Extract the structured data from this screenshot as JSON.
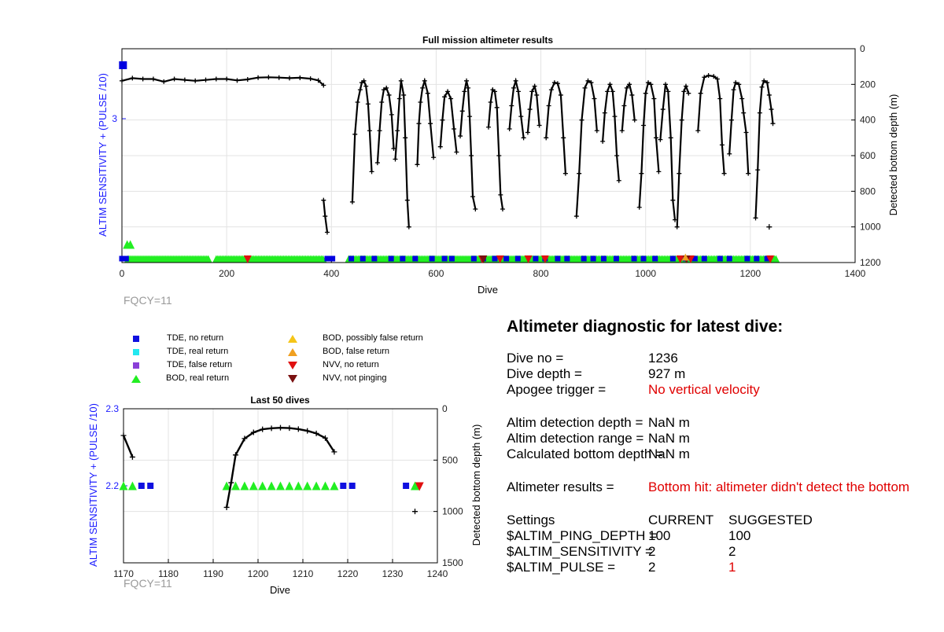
{
  "chart_data": [
    {
      "type": "scatter",
      "title": "Full mission altimeter results",
      "xlabel": "Dive",
      "ylabel_left": "ALTIM SENSITIVITY + (PULSE /10)",
      "ylabel_right": "Detected bottom depth (m)",
      "xlim": [
        0,
        1400
      ],
      "xticks": [
        "0",
        "200",
        "400",
        "600",
        "800",
        "1000",
        "1200",
        "1400"
      ],
      "ylim_right": [
        1200,
        0
      ],
      "yticks_right": [
        "0",
        "200",
        "400",
        "600",
        "800",
        "1000",
        "1200"
      ],
      "yticks_left": [
        "3"
      ],
      "grid": true,
      "colors": {
        "tde_no_return": "#0000e0",
        "bod_real_return": "#22ee22",
        "nvv_no_return": "#e01010",
        "nvv_not_pinging": "#7a1010",
        "bod_false_return": "#f0a020",
        "depth": "#000000"
      },
      "depth_segments": [
        [
          [
            0,
            180
          ],
          [
            20,
            165
          ],
          [
            40,
            170
          ],
          [
            60,
            170
          ],
          [
            80,
            185
          ],
          [
            100,
            170
          ],
          [
            120,
            175
          ],
          [
            140,
            180
          ],
          [
            160,
            175
          ],
          [
            180,
            170
          ],
          [
            200,
            170
          ],
          [
            220,
            178
          ],
          [
            240,
            172
          ],
          [
            260,
            162
          ],
          [
            280,
            160
          ],
          [
            300,
            162
          ],
          [
            320,
            165
          ],
          [
            340,
            163
          ],
          [
            360,
            168
          ],
          [
            375,
            178
          ],
          [
            385,
            205
          ]
        ],
        [
          [
            385,
            850
          ],
          [
            388,
            940
          ],
          [
            392,
            1030
          ]
        ],
        [
          [
            440,
            860
          ],
          [
            445,
            480
          ],
          [
            450,
            300
          ],
          [
            455,
            230
          ],
          [
            458,
            190
          ],
          [
            462,
            180
          ],
          [
            466,
            210
          ],
          [
            470,
            310
          ],
          [
            473,
            460
          ],
          [
            477,
            690
          ]
        ],
        [
          [
            488,
            640
          ],
          [
            492,
            460
          ],
          [
            496,
            300
          ],
          [
            500,
            230
          ],
          [
            505,
            220
          ],
          [
            510,
            260
          ],
          [
            515,
            370
          ],
          [
            519,
            560
          ]
        ],
        [
          [
            522,
            620
          ],
          [
            526,
            460
          ],
          [
            530,
            280
          ],
          [
            533,
            180
          ],
          [
            538,
            260
          ],
          [
            541,
            500
          ],
          [
            545,
            850
          ],
          [
            548,
            1000
          ]
        ],
        [
          [
            564,
            650
          ],
          [
            567,
            420
          ],
          [
            570,
            300
          ],
          [
            574,
            220
          ],
          [
            578,
            180
          ],
          [
            584,
            250
          ],
          [
            589,
            420
          ],
          [
            595,
            610
          ]
        ],
        [
          [
            608,
            550
          ],
          [
            612,
            400
          ],
          [
            616,
            270
          ],
          [
            622,
            240
          ],
          [
            628,
            280
          ],
          [
            634,
            450
          ],
          [
            639,
            580
          ]
        ],
        [
          [
            646,
            490
          ],
          [
            650,
            350
          ],
          [
            654,
            240
          ],
          [
            658,
            180
          ],
          [
            661,
            220
          ],
          [
            664,
            380
          ],
          [
            667,
            600
          ],
          [
            670,
            830
          ],
          [
            675,
            900
          ]
        ],
        [
          [
            700,
            440
          ],
          [
            704,
            300
          ],
          [
            708,
            230
          ],
          [
            712,
            240
          ],
          [
            716,
            330
          ],
          [
            720,
            600
          ],
          [
            723,
            820
          ],
          [
            727,
            900
          ]
        ],
        [
          [
            740,
            450
          ],
          [
            744,
            320
          ],
          [
            748,
            220
          ],
          [
            752,
            180
          ],
          [
            757,
            240
          ],
          [
            762,
            380
          ],
          [
            767,
            500
          ]
        ],
        [
          [
            775,
            470
          ],
          [
            779,
            340
          ],
          [
            783,
            240
          ],
          [
            788,
            210
          ],
          [
            792,
            260
          ],
          [
            797,
            430
          ]
        ],
        [
          [
            810,
            500
          ],
          [
            815,
            320
          ],
          [
            820,
            230
          ],
          [
            826,
            190
          ],
          [
            832,
            195
          ],
          [
            838,
            260
          ],
          [
            843,
            500
          ],
          [
            847,
            700
          ]
        ],
        [
          [
            868,
            940
          ],
          [
            873,
            700
          ],
          [
            878,
            400
          ],
          [
            884,
            220
          ],
          [
            890,
            180
          ],
          [
            896,
            190
          ],
          [
            902,
            280
          ],
          [
            907,
            460
          ]
        ],
        [
          [
            918,
            520
          ],
          [
            922,
            360
          ],
          [
            927,
            240
          ],
          [
            932,
            200
          ],
          [
            937,
            240
          ],
          [
            941,
            380
          ],
          [
            945,
            600
          ],
          [
            949,
            740
          ]
        ],
        [
          [
            955,
            460
          ],
          [
            959,
            320
          ],
          [
            964,
            220
          ],
          [
            969,
            200
          ],
          [
            974,
            260
          ],
          [
            979,
            400
          ]
        ],
        [
          [
            988,
            890
          ],
          [
            992,
            700
          ],
          [
            996,
            430
          ],
          [
            1000,
            250
          ],
          [
            1005,
            190
          ],
          [
            1010,
            200
          ],
          [
            1016,
            280
          ],
          [
            1020,
            500
          ],
          [
            1025,
            690
          ]
        ],
        [
          [
            1028,
            510
          ],
          [
            1033,
            340
          ],
          [
            1038,
            200
          ],
          [
            1043,
            240
          ],
          [
            1048,
            500
          ],
          [
            1052,
            850
          ],
          [
            1056,
            960
          ]
        ],
        [
          [
            1060,
            1000
          ],
          [
            1064,
            700
          ],
          [
            1069,
            400
          ],
          [
            1073,
            240
          ],
          [
            1077,
            210
          ],
          [
            1082,
            250
          ]
        ],
        [
          [
            1100,
            460
          ],
          [
            1105,
            250
          ],
          [
            1112,
            160
          ],
          [
            1120,
            150
          ],
          [
            1130,
            155
          ],
          [
            1137,
            170
          ],
          [
            1142,
            280
          ],
          [
            1146,
            540
          ],
          [
            1150,
            700
          ]
        ],
        [
          [
            1160,
            590
          ],
          [
            1164,
            400
          ],
          [
            1168,
            230
          ],
          [
            1172,
            190
          ],
          [
            1178,
            200
          ],
          [
            1184,
            280
          ],
          [
            1187,
            360
          ],
          [
            1192,
            470
          ],
          [
            1196,
            700
          ]
        ],
        [
          [
            1210,
            950
          ],
          [
            1214,
            680
          ],
          [
            1218,
            360
          ],
          [
            1222,
            215
          ],
          [
            1226,
            180
          ],
          [
            1232,
            190
          ],
          [
            1236,
            260
          ],
          [
            1240,
            340
          ],
          [
            1243,
            420
          ]
        ]
      ],
      "depth_isolated": [
        [
          1236,
          1000
        ]
      ],
      "tde_no_return_dives": [
        0,
        8,
        392,
        402,
        438,
        460,
        482,
        514,
        536,
        560,
        592,
        616,
        630,
        672,
        690,
        712,
        734,
        756,
        790,
        808,
        832,
        850,
        882,
        900,
        920,
        944,
        978,
        996,
        1018,
        1052,
        1076,
        1094,
        1112,
        1142,
        1160,
        1194,
        1212,
        1232
      ],
      "bod_band": [
        [
          12,
          165
        ],
        [
          180,
          385
        ],
        [
          433,
          1250
        ]
      ],
      "bod_low_dives": [
        10,
        16
      ],
      "nvv_no_return_dives": [
        240,
        688,
        722,
        776,
        808,
        1066,
        1086,
        1238
      ],
      "nvv_not_pinging_dives": [
        690,
        1078
      ]
    },
    {
      "type": "scatter",
      "title": "Last 50 dives",
      "xlabel": "Dive",
      "ylabel_left": "ALTIM SENSITIVITY + (PULSE /10)",
      "ylabel_right": "Detected bottom depth (m)",
      "xlim": [
        1170,
        1240
      ],
      "xticks": [
        "1170",
        "1180",
        "1190",
        "1200",
        "1210",
        "1220",
        "1230",
        "1240"
      ],
      "ylim_left": [
        2.1,
        2.3
      ],
      "yticks_left": [
        "2.3",
        "2.2"
      ],
      "ylim_right": [
        1500,
        0
      ],
      "yticks_right": [
        "0",
        "500",
        "1000",
        "1500"
      ],
      "grid": true,
      "depth_segments": [
        [
          [
            1170,
            260
          ],
          [
            1172,
            470
          ]
        ],
        [
          [
            1193,
            960
          ],
          [
            1194,
            720
          ],
          [
            1195,
            450
          ],
          [
            1197,
            290
          ],
          [
            1199,
            230
          ],
          [
            1201,
            200
          ],
          [
            1203,
            190
          ],
          [
            1205,
            185
          ],
          [
            1207,
            188
          ],
          [
            1209,
            198
          ],
          [
            1211,
            215
          ],
          [
            1213,
            240
          ],
          [
            1215,
            285
          ],
          [
            1217,
            420
          ]
        ],
        [
          [
            1235,
            1000
          ]
        ]
      ],
      "bod_real_return_dives": [
        1170,
        1172,
        1193,
        1195,
        1197,
        1199,
        1201,
        1203,
        1205,
        1207,
        1209,
        1211,
        1213,
        1215,
        1217,
        1235
      ],
      "tde_no_return_dives": [
        1174,
        1176,
        1219,
        1221,
        1233
      ],
      "nvv_no_return_dives": [
        1236
      ]
    }
  ],
  "legend": [
    {
      "label": "TDE, no return",
      "shape": "square",
      "color": "#1010e0"
    },
    {
      "label": "TDE, real return",
      "shape": "square",
      "color": "#22e8f0"
    },
    {
      "label": "TDE, false return",
      "shape": "square",
      "color": "#8a3fd8"
    },
    {
      "label": "BOD, real return",
      "shape": "triangle-up",
      "color": "#22ee22"
    },
    {
      "label": "BOD, possibly false return",
      "shape": "triangle-up",
      "color": "#f5c518"
    },
    {
      "label": "BOD, false return",
      "shape": "triangle-up",
      "color": "#f0a020"
    },
    {
      "label": "NVV, no return",
      "shape": "triangle-down",
      "color": "#e01010"
    },
    {
      "label": "NVV, not pinging",
      "shape": "triangle-down",
      "color": "#7a1010"
    }
  ],
  "fqcy_label": "FQCY=11",
  "diagnostic": {
    "heading": "Altimeter diagnostic for latest dive:",
    "dive_no_label": "Dive no =",
    "dive_no_value": "1236",
    "dive_depth_label": "Dive depth =",
    "dive_depth_value": "927 m",
    "apogee_label": "Apogee trigger =",
    "apogee_value": "No vertical velocity",
    "det_depth_label": "Altim detection depth =",
    "det_depth_value": "NaN m",
    "det_range_label": "Altim detection range =",
    "det_range_value": "NaN m",
    "calc_bottom_label": "Calculated bottom depth =",
    "calc_bottom_value": "NaN m",
    "results_label": "Altimeter results =",
    "results_value": "Bottom hit: altimeter didn't detect the bottom",
    "settings_label": "Settings",
    "current_label": "CURRENT",
    "suggested_label": "SUGGESTED",
    "ping_depth_label": "$ALTIM_PING_DEPTH =",
    "ping_depth_current": "100",
    "ping_depth_suggested": "100",
    "sensitivity_label": "$ALTIM_SENSITIVITY =",
    "sensitivity_current": "2",
    "sensitivity_suggested": "2",
    "pulse_label": "$ALTIM_PULSE =",
    "pulse_current": "2",
    "pulse_suggested": "1"
  }
}
